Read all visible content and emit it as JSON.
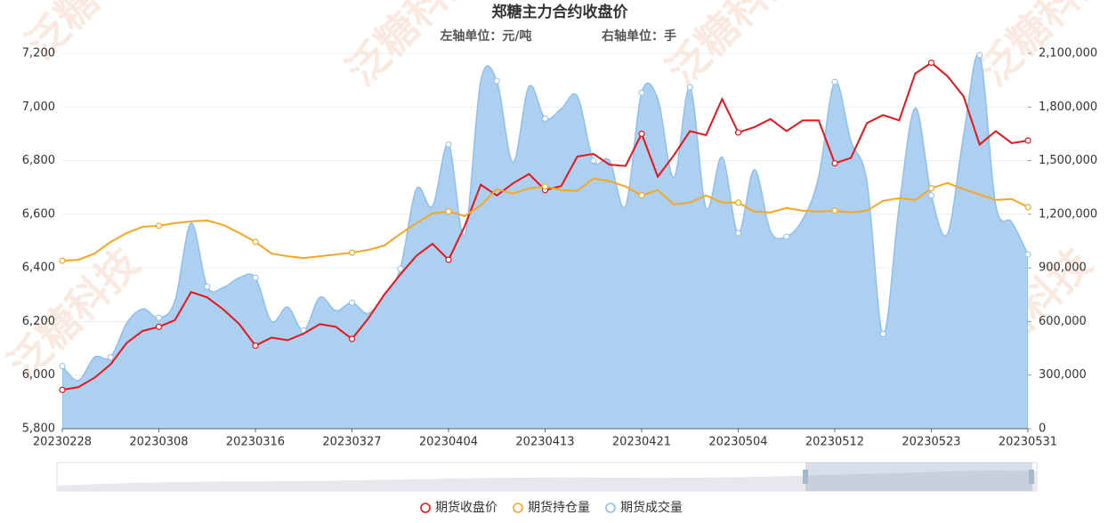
{
  "chart_data": {
    "type": "line",
    "title": "郑糖主力合约收盘价",
    "left_axis_unit": "左轴单位：元/吨",
    "right_axis_unit": "右轴单位：手",
    "watermark": "泛糖科技",
    "categories": [
      "20230228",
      null,
      null,
      null,
      null,
      null,
      "20230308",
      null,
      null,
      null,
      null,
      null,
      "20230316",
      null,
      null,
      null,
      null,
      null,
      "20230327",
      null,
      null,
      null,
      null,
      null,
      "20230404",
      null,
      null,
      null,
      null,
      null,
      "20230413",
      null,
      null,
      null,
      null,
      null,
      "20230421",
      null,
      null,
      null,
      null,
      null,
      "20230504",
      null,
      null,
      null,
      null,
      null,
      "20230512",
      null,
      null,
      null,
      null,
      null,
      "20230523",
      null,
      null,
      null,
      null,
      null,
      "20230531"
    ],
    "ylim": [
      5800,
      7200
    ],
    "yticks": [
      {
        "value": 5800,
        "label": "5,800"
      },
      {
        "value": 6000,
        "label": "6,000"
      },
      {
        "value": 6200,
        "label": "6,200"
      },
      {
        "value": 6400,
        "label": "6,400"
      },
      {
        "value": 6600,
        "label": "6,600"
      },
      {
        "value": 6800,
        "label": "6,800"
      },
      {
        "value": 7000,
        "label": "7,000"
      },
      {
        "value": 7200,
        "label": "7,200"
      }
    ],
    "y2lim": [
      0,
      2100000
    ],
    "y2ticks": [
      0,
      {
        "value": 300000,
        "label": "300,000"
      },
      {
        "value": 600000,
        "label": "600,000"
      },
      {
        "value": 900000,
        "label": "900,000"
      },
      {
        "value": 1200000,
        "label": "1,200,000"
      },
      {
        "value": 1500000,
        "label": "1,500,000"
      },
      {
        "value": 1800000,
        "label": "1,800,000"
      },
      {
        "value": 2100000,
        "label": "2,100,000"
      }
    ],
    "grid": true,
    "legend": "bottom",
    "series": [
      {
        "name": "期货收盘价",
        "color": "#e8141a",
        "kind": "line",
        "values": [
          5945,
          5955,
          5990,
          6040,
          6120,
          6165,
          6180,
          6205,
          6310,
          6290,
          6245,
          6190,
          6110,
          6140,
          6130,
          6155,
          6190,
          6180,
          6135,
          6210,
          6300,
          6375,
          6445,
          6490,
          6430,
          6555,
          6710,
          6670,
          6715,
          6750,
          6690,
          6705,
          6815,
          6825,
          6785,
          6780,
          6900,
          6740,
          6820,
          6910,
          6895,
          7030,
          6905,
          6925,
          6955,
          6910,
          6950,
          6950,
          6790,
          6810,
          6940,
          6970,
          6950,
          7125,
          7165,
          7115,
          7040,
          6860,
          6910,
          6865,
          6875
        ]
      },
      {
        "name": "期货持仓量",
        "color": "#f5a623",
        "kind": "line",
        "axis": "y2",
        "values": [
          940000,
          945000,
          980000,
          1045000,
          1095000,
          1130000,
          1135000,
          1150000,
          1160000,
          1165000,
          1140000,
          1095000,
          1045000,
          980000,
          965000,
          955000,
          965000,
          975000,
          985000,
          1000000,
          1025000,
          1090000,
          1150000,
          1205000,
          1215000,
          1190000,
          1250000,
          1340000,
          1315000,
          1345000,
          1355000,
          1335000,
          1330000,
          1400000,
          1385000,
          1355000,
          1305000,
          1335000,
          1255000,
          1265000,
          1305000,
          1265000,
          1265000,
          1215000,
          1210000,
          1235000,
          1220000,
          1215000,
          1220000,
          1210000,
          1220000,
          1275000,
          1290000,
          1280000,
          1345000,
          1375000,
          1340000,
          1310000,
          1280000,
          1285000,
          1240000
        ]
      },
      {
        "name": "期货成交量",
        "color": "#a9cdf0",
        "kind": "area",
        "axis": "y2",
        "values": [
          350000,
          270000,
          400000,
          400000,
          590000,
          670000,
          620000,
          715000,
          1150000,
          795000,
          790000,
          845000,
          845000,
          600000,
          680000,
          550000,
          735000,
          660000,
          705000,
          645000,
          745000,
          895000,
          1340000,
          1245000,
          1590000,
          1080000,
          1945000,
          1945000,
          1490000,
          1915000,
          1735000,
          1790000,
          1860000,
          1500000,
          1500000,
          1245000,
          1880000,
          1845000,
          1405000,
          1910000,
          1235000,
          1520000,
          1095000,
          1450000,
          1105000,
          1075000,
          1170000,
          1410000,
          1940000,
          1610000,
          1380000,
          530000,
          1245000,
          1795000,
          1305000,
          1090000,
          1640000,
          2090000,
          1250000,
          1155000,
          975000
        ]
      }
    ]
  }
}
